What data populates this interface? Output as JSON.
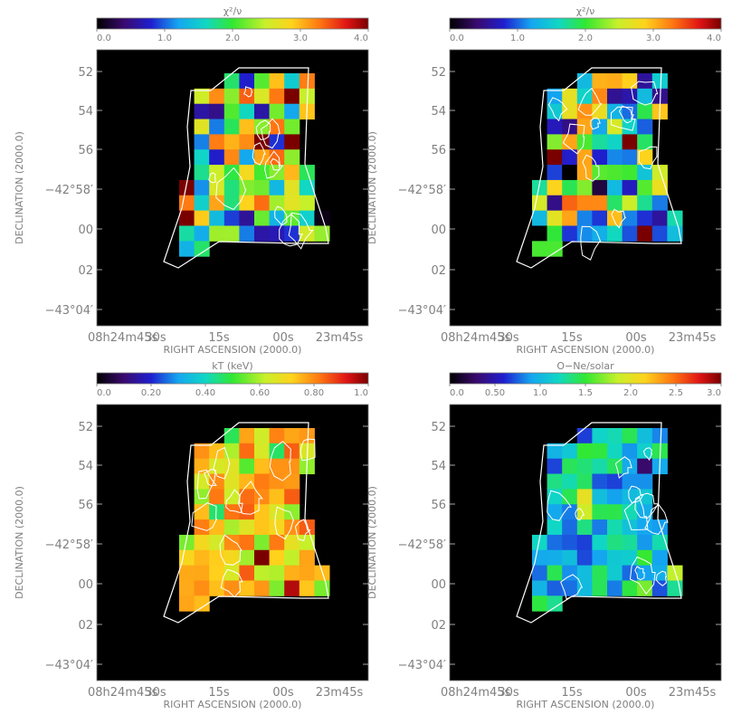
{
  "figure": {
    "xlabel": "RIGHT ASCENSION (2000.0)",
    "ylabel": "DECLINATION (2000.0)",
    "yticks": [
      "52",
      "54",
      "56",
      "−42°58′",
      "00",
      "02",
      "−43°04′"
    ],
    "xticks": [
      "08h24m45s",
      "30s",
      "15s",
      "00s",
      "23m45s"
    ],
    "background": "#000000",
    "contour_color": "#ffffff"
  },
  "chart_data": [
    {
      "type": "heatmap",
      "title": "χ²/ν",
      "colorbar": {
        "range": [
          0.0,
          4.0
        ],
        "ticks": [
          "0.0",
          "1.0",
          "2.0",
          "3.0",
          "4.0"
        ]
      },
      "typical_value": 2.0,
      "value_spread": 0.35
    },
    {
      "type": "heatmap",
      "title": "χ²/ν",
      "colorbar": {
        "range": [
          0.0,
          4.0
        ],
        "ticks": [
          "0.0",
          "1.0",
          "2.0",
          "3.0",
          "4.0"
        ]
      },
      "typical_value": 1.9,
      "value_spread": 0.35
    },
    {
      "type": "heatmap",
      "title": "kT (keV)",
      "colorbar": {
        "range": [
          0.0,
          1.0
        ],
        "ticks": [
          "0.0",
          "0.20",
          "0.40",
          "0.60",
          "0.80",
          "1.0"
        ]
      },
      "typical_value": 0.7,
      "value_spread": 0.15
    },
    {
      "type": "heatmap",
      "title": "O−Ne/solar",
      "colorbar": {
        "range": [
          0.0,
          3.0
        ],
        "ticks": [
          "0.0",
          "0.50",
          "1.0",
          "1.5",
          "2.0",
          "2.5",
          "3.0"
        ]
      },
      "typical_value": 1.1,
      "value_spread": 0.15
    }
  ]
}
